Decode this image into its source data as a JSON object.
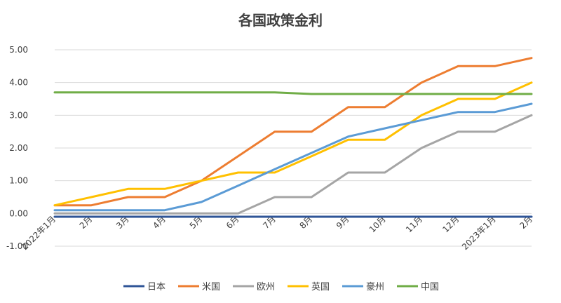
{
  "chart_data": {
    "type": "line",
    "title": "各国政策金利",
    "categories": [
      "2022年1月",
      "2月",
      "3月",
      "4月",
      "5月",
      "6月",
      "7月",
      "8月",
      "9月",
      "10月",
      "11月",
      "12月",
      "2023年1月",
      "2月"
    ],
    "ylim": [
      -1.0,
      5.0
    ],
    "yticks": [
      "-1.00",
      "0.00",
      "1.00",
      "2.00",
      "3.00",
      "4.00",
      "5.00"
    ],
    "grid": true,
    "legend_position": "bottom",
    "series": [
      {
        "name": "日本",
        "color": "#2f5597",
        "values": [
          -0.1,
          -0.1,
          -0.1,
          -0.1,
          -0.1,
          -0.1,
          -0.1,
          -0.1,
          -0.1,
          -0.1,
          -0.1,
          -0.1,
          -0.1,
          -0.1
        ]
      },
      {
        "name": "米国",
        "color": "#ed7d31",
        "values": [
          0.25,
          0.25,
          0.5,
          0.5,
          1.0,
          1.75,
          2.5,
          2.5,
          3.25,
          3.25,
          4.0,
          4.5,
          4.5,
          4.75
        ]
      },
      {
        "name": "欧州",
        "color": "#a5a5a5",
        "values": [
          0.0,
          0.0,
          0.0,
          0.0,
          0.0,
          0.0,
          0.5,
          0.5,
          1.25,
          1.25,
          2.0,
          2.5,
          2.5,
          3.0
        ]
      },
      {
        "name": "英国",
        "color": "#ffc000",
        "values": [
          0.25,
          0.5,
          0.75,
          0.75,
          1.0,
          1.25,
          1.25,
          1.75,
          2.25,
          2.25,
          3.0,
          3.5,
          3.5,
          4.0
        ]
      },
      {
        "name": "豪州",
        "color": "#5b9bd5",
        "values": [
          0.1,
          0.1,
          0.1,
          0.1,
          0.35,
          0.85,
          1.35,
          1.85,
          2.35,
          2.6,
          2.85,
          3.1,
          3.1,
          3.35
        ]
      },
      {
        "name": "中国",
        "color": "#70ad47",
        "values": [
          3.7,
          3.7,
          3.7,
          3.7,
          3.7,
          3.7,
          3.7,
          3.65,
          3.65,
          3.65,
          3.65,
          3.65,
          3.65,
          3.65
        ]
      }
    ]
  }
}
